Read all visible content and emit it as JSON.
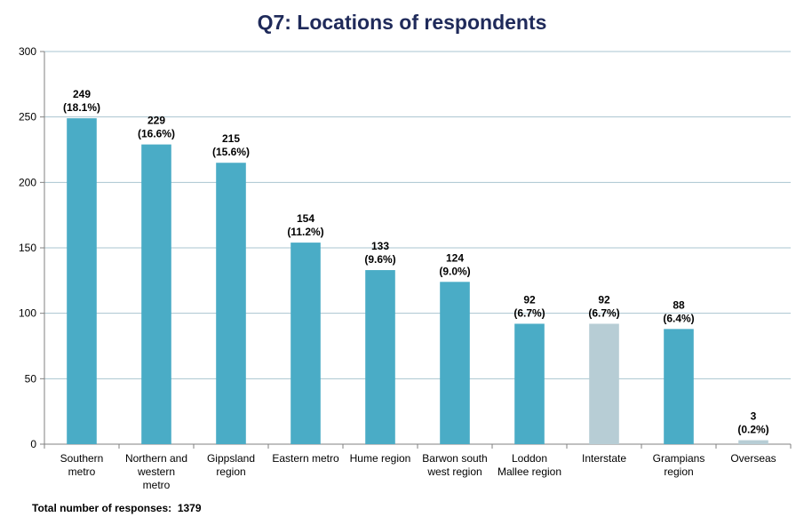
{
  "chart_data": {
    "type": "bar",
    "title": "Q7:  Locations of respondents",
    "categories": [
      [
        "Southern",
        "metro"
      ],
      [
        "Northern and",
        "western",
        "metro"
      ],
      [
        "Gippsland",
        "region"
      ],
      [
        "Eastern metro"
      ],
      [
        "Hume region"
      ],
      [
        "Barwon south",
        "west region"
      ],
      [
        "Loddon",
        "Mallee region"
      ],
      [
        "Interstate"
      ],
      [
        "Grampians",
        "region"
      ],
      [
        "Overseas"
      ]
    ],
    "values": [
      249,
      229,
      215,
      154,
      133,
      124,
      92,
      92,
      88,
      3
    ],
    "value_labels": [
      "249",
      "229",
      "215",
      "154",
      "133",
      "124",
      "92",
      "92",
      "88",
      "3"
    ],
    "percent_labels": [
      "(18.1%)",
      "(16.6%)",
      "(15.6%)",
      "(11.2%)",
      "(9.6%)",
      "(9.0%)",
      "(6.7%)",
      "(6.7%)",
      "(6.4%)",
      "(0.2%)"
    ],
    "bar_colors": [
      "#4aacc6",
      "#4aacc6",
      "#4aacc6",
      "#4aacc6",
      "#4aacc6",
      "#4aacc6",
      "#4aacc6",
      "#b7cdd5",
      "#4aacc6",
      "#b7cdd5"
    ],
    "ylim": [
      0,
      300
    ],
    "yticks": [
      0,
      50,
      100,
      150,
      200,
      250,
      300
    ],
    "grid": true,
    "xlabel": "",
    "ylabel": ""
  },
  "footnote": {
    "label": "Total number of responses:",
    "value": "1379"
  },
  "colors": {
    "title": "#1f2a5a",
    "grid": "#a9c4d0",
    "axis": "#808080"
  }
}
